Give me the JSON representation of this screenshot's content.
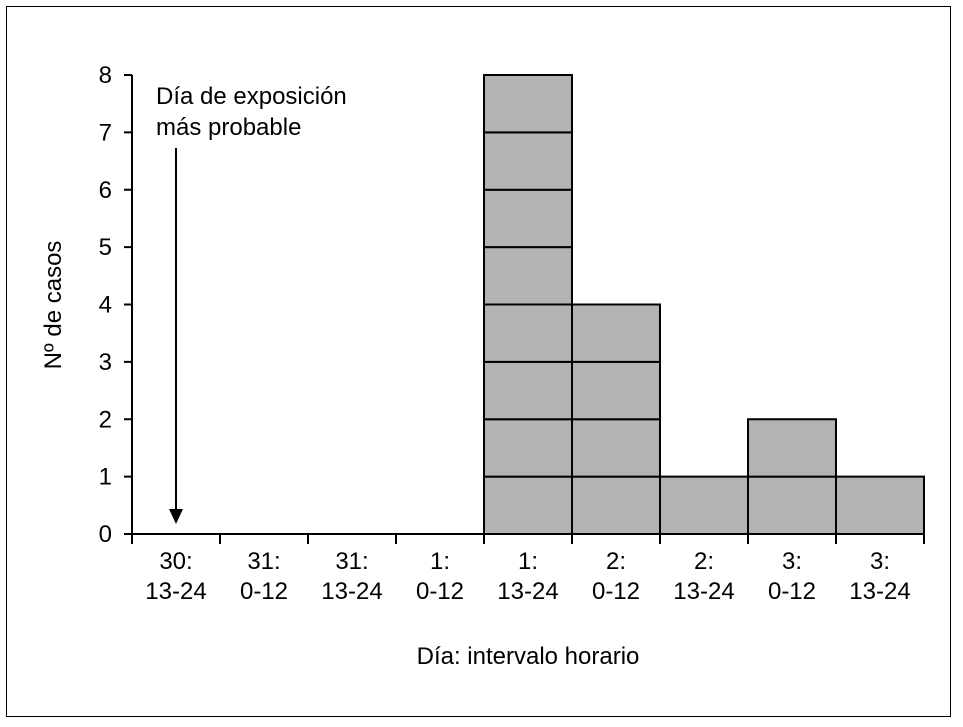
{
  "chart_data": {
    "type": "bar",
    "categories": [
      [
        "30:",
        "13-24"
      ],
      [
        "31:",
        "0-12"
      ],
      [
        "31:",
        "13-24"
      ],
      [
        "1:",
        "0-12"
      ],
      [
        "1:",
        "13-24"
      ],
      [
        "2:",
        "0-12"
      ],
      [
        "2:",
        "13-24"
      ],
      [
        "3:",
        "0-12"
      ],
      [
        "3:",
        "13-24"
      ]
    ],
    "values": [
      0,
      0,
      0,
      0,
      8,
      4,
      1,
      2,
      1
    ],
    "title": "",
    "xlabel": "Día: intervalo horario",
    "ylabel": "Nº de casos",
    "ylim": [
      0,
      8
    ],
    "yticks": [
      0,
      1,
      2,
      3,
      4,
      5,
      6,
      7,
      8
    ],
    "grid": false,
    "bar_style": "stacked unit cells (one cell per case)",
    "bar_color": "#b3b3b3",
    "annotation": {
      "lines": [
        "Día de exposición",
        "más probable"
      ],
      "category_index": 0
    }
  }
}
